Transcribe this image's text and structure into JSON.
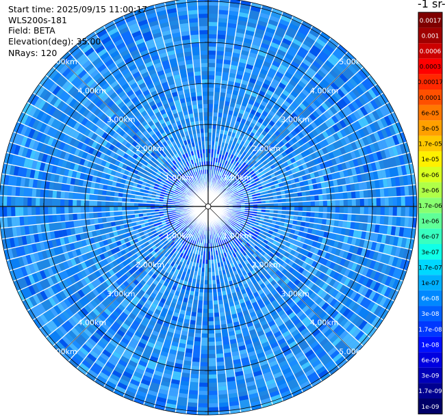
{
  "header": {
    "start_time": "Start time: 2025/09/15 11:00:17",
    "instrument": "WLS200s-181",
    "field": "Field: BETA",
    "elevation": "Elevation(deg): 35.00",
    "nrays": "NRays: 120"
  },
  "colorbar": {
    "title": "-1 sr-",
    "labels": [
      "0.0017",
      "0.001",
      "0.0006",
      "0.0003",
      "0.00017",
      "0.0001",
      "6e-05",
      "3e-05",
      "1.7e-05",
      "1e-05",
      "6e-06",
      "3e-06",
      "1.7e-06",
      "1e-06",
      "6e-07",
      "3e-07",
      "1.7e-07",
      "1e-07",
      "6e-08",
      "3e-08",
      "1.7e-08",
      "1e-08",
      "6e-09",
      "3e-09",
      "1.7e-09",
      "1e-09"
    ],
    "colors": [
      "#7f0000",
      "#a00000",
      "#cc0000",
      "#ff0000",
      "#ff2800",
      "#ff5000",
      "#ff7800",
      "#ffa000",
      "#ffc800",
      "#fff000",
      "#d8ff20",
      "#b0ff48",
      "#88ff70",
      "#60ff98",
      "#38ffc0",
      "#10ffe8",
      "#00d8ff",
      "#00b0ff",
      "#0088ff",
      "#0060ff",
      "#0038ff",
      "#0010ff",
      "#0000e0",
      "#0000b8",
      "#000090",
      "#000068"
    ]
  },
  "chart_data": {
    "type": "heatmap",
    "projection": "polar (PPI scan)",
    "field": "BETA",
    "elevation_deg": 35.0,
    "n_rays": 120,
    "range_rings_km": [
      1,
      2,
      3,
      4,
      5
    ],
    "ring_labels": [
      "1.00km",
      "2.00km",
      "3.00km",
      "4.00km",
      "5.00km"
    ],
    "max_range_km": 6.2,
    "typical_value_range": [
      3e-08,
      1.7e-07
    ],
    "colorscale": "log jet, 1e-09 to 0.0017"
  }
}
